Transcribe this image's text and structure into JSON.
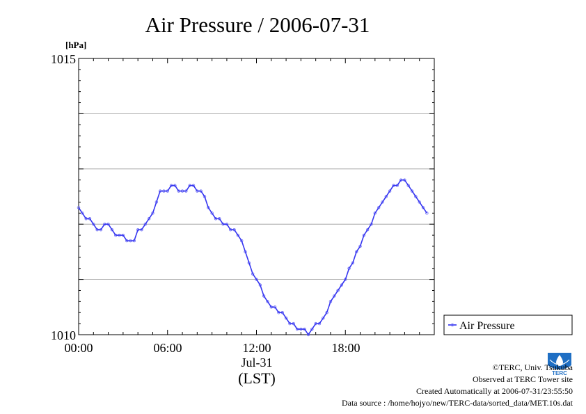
{
  "chart_data": {
    "type": "line",
    "title": "Air Pressure / 2006-07-31",
    "ylabel": "[hPa]",
    "ylim": [
      1010,
      1015
    ],
    "y_ticks": [
      "1015",
      "1010"
    ],
    "grid": true,
    "x_ticks": [
      "00:00",
      "06:00",
      "12:00",
      "18:00"
    ],
    "x_date_label": "Jul-31",
    "x_zone_label": "(LST)",
    "legend_position": "right",
    "series": [
      {
        "name": "Air Pressure",
        "color": "#3535f0",
        "x": [
          0,
          0.25,
          0.5,
          0.75,
          1.0,
          1.25,
          1.5,
          1.75,
          2.0,
          2.25,
          2.5,
          2.75,
          3.0,
          3.25,
          3.5,
          3.75,
          4.0,
          4.25,
          4.5,
          4.75,
          5.0,
          5.25,
          5.5,
          5.75,
          6.0,
          6.25,
          6.5,
          6.75,
          7.0,
          7.25,
          7.5,
          7.75,
          8.0,
          8.25,
          8.5,
          8.75,
          9.0,
          9.25,
          9.5,
          9.75,
          10.0,
          10.25,
          10.5,
          10.75,
          11.0,
          11.25,
          11.5,
          11.75,
          12.0,
          12.25,
          12.5,
          12.75,
          13.0,
          13.25,
          13.5,
          13.75,
          14.0,
          14.25,
          14.5,
          14.75,
          15.0,
          15.25,
          15.5,
          15.75,
          16.0,
          16.25,
          16.5,
          16.75,
          17.0,
          17.25,
          17.5,
          17.75,
          18.0,
          18.25,
          18.5,
          18.75,
          19.0,
          19.25,
          19.5,
          19.75,
          20.0,
          20.25,
          20.5,
          20.75,
          21.0,
          21.25,
          21.5,
          21.75,
          22.0,
          22.25,
          22.5,
          22.75,
          23.0,
          23.25,
          23.5
        ],
        "values": [
          1012.3,
          1012.2,
          1012.1,
          1012.1,
          1012.0,
          1011.9,
          1011.9,
          1012.0,
          1012.0,
          1011.9,
          1011.8,
          1011.8,
          1011.8,
          1011.7,
          1011.7,
          1011.7,
          1011.9,
          1011.9,
          1012.0,
          1012.1,
          1012.2,
          1012.4,
          1012.6,
          1012.6,
          1012.6,
          1012.7,
          1012.7,
          1012.6,
          1012.6,
          1012.6,
          1012.7,
          1012.7,
          1012.6,
          1012.6,
          1012.5,
          1012.3,
          1012.2,
          1012.1,
          1012.1,
          1012.0,
          1012.0,
          1011.9,
          1011.9,
          1011.8,
          1011.7,
          1011.5,
          1011.3,
          1011.1,
          1011.0,
          1010.9,
          1010.7,
          1010.6,
          1010.5,
          1010.5,
          1010.4,
          1010.4,
          1010.3,
          1010.2,
          1010.2,
          1010.1,
          1010.1,
          1010.1,
          1010.0,
          1010.1,
          1010.2,
          1010.2,
          1010.3,
          1010.4,
          1010.6,
          1010.7,
          1010.8,
          1010.9,
          1011.0,
          1011.2,
          1011.3,
          1011.5,
          1011.6,
          1011.8,
          1011.9,
          1012.0,
          1012.2,
          1012.3,
          1012.4,
          1012.5,
          1012.6,
          1012.7,
          1012.7,
          1012.8,
          1012.8,
          1012.7,
          1012.6,
          1012.5,
          1012.4,
          1012.3,
          1012.2
        ]
      }
    ]
  },
  "credits": {
    "copyright": "©TERC, Univ. Tsukuba",
    "observed": "Observed at TERC Tower site",
    "created": "Created Automatically at 2006-07-31/23:55:50",
    "source": "Data source : /home/hojyo/new/TERC-data/sorted_data/MET.10s.dat",
    "logo_text": "TERC"
  }
}
